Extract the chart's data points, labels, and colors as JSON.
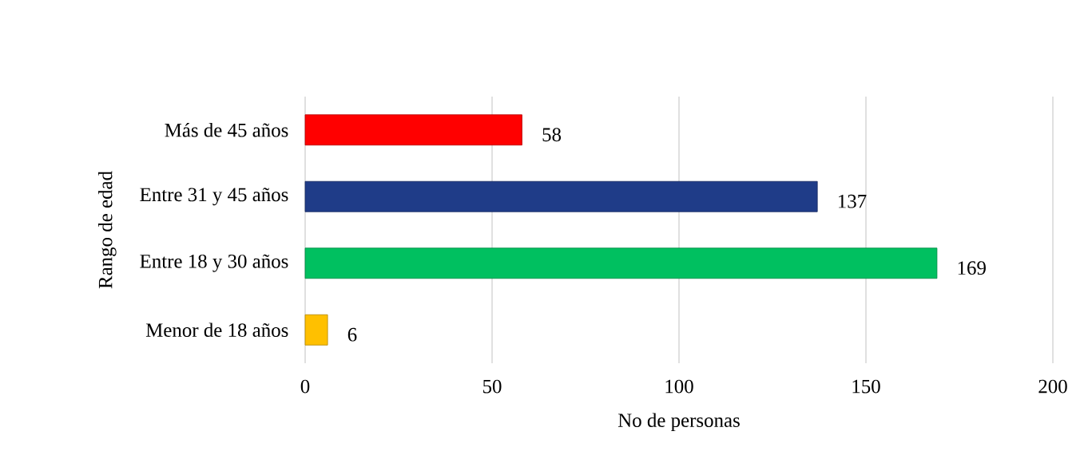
{
  "chart_data": {
    "type": "bar",
    "orientation": "horizontal",
    "categories": [
      "Más de 45 años",
      "Entre 31 y 45 años",
      "Entre 18 y 30 años",
      "Menor de 18 años"
    ],
    "values": [
      58,
      137,
      169,
      6
    ],
    "colors": [
      "#ff0000",
      "#1f3c88",
      "#00c060",
      "#ffc000"
    ],
    "xlabel": "No de personas",
    "ylabel": "Rango de edad",
    "xlim": [
      0,
      200
    ],
    "xticks": [
      0,
      50,
      100,
      150,
      200
    ],
    "grid": "x",
    "data_labels": true
  }
}
